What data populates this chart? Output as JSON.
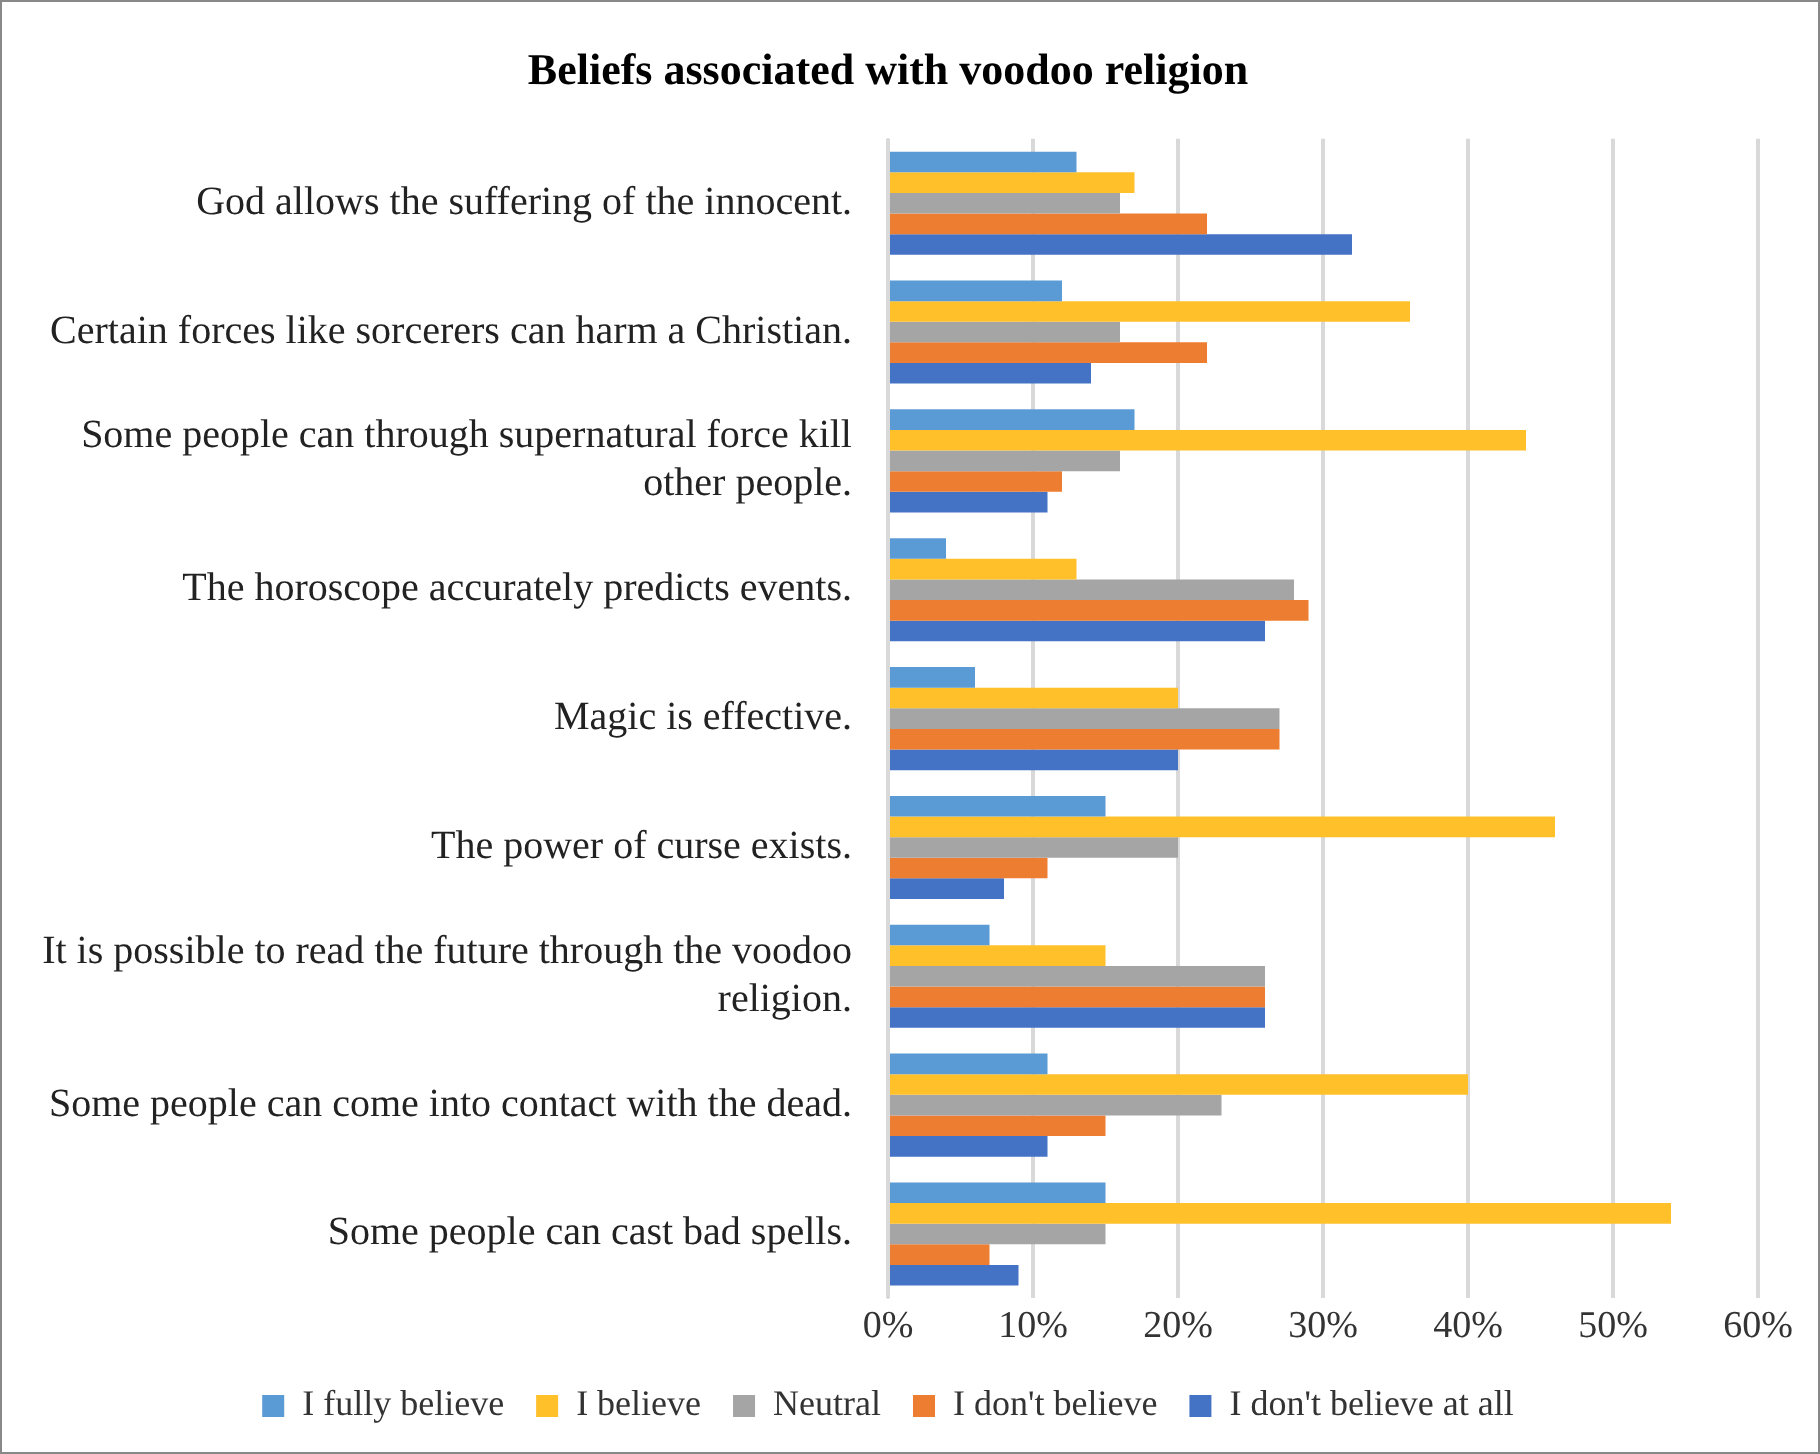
{
  "chart_data": {
    "type": "bar",
    "orientation": "horizontal",
    "title": "Beliefs associated with voodoo religion",
    "categories": [
      "God allows the suffering of the innocent.",
      "Certain forces like sorcerers can harm a Christian.",
      "Some people can through supernatural force kill other people.",
      "The horoscope accurately predicts events.",
      "Magic is effective.",
      "The power of curse exists.",
      "It is possible to read the future through the voodoo religion.",
      "Some people can come into contact with the dead.",
      "Some people can cast bad spells."
    ],
    "series": [
      {
        "name": "I fully believe",
        "color": "#5b9bd5",
        "values": [
          13,
          12,
          17,
          4,
          6,
          15,
          7,
          11,
          15
        ]
      },
      {
        "name": "I believe",
        "color": "#ffc02a",
        "values": [
          17,
          36,
          44,
          13,
          20,
          46,
          15,
          40,
          54
        ]
      },
      {
        "name": "Neutral",
        "color": "#a5a5a5",
        "values": [
          16,
          16,
          16,
          28,
          27,
          20,
          26,
          23,
          15
        ]
      },
      {
        "name": "I don't believe",
        "color": "#ed7d31",
        "values": [
          22,
          22,
          12,
          29,
          27,
          11,
          26,
          15,
          7
        ]
      },
      {
        "name": "I don't believe at all",
        "color": "#4472c4",
        "values": [
          32,
          14,
          11,
          26,
          20,
          8,
          26,
          11,
          9
        ]
      }
    ],
    "xlim": [
      0,
      60
    ],
    "xticks": [
      {
        "value": 0,
        "label": "0%"
      },
      {
        "value": 10,
        "label": "10%"
      },
      {
        "value": 20,
        "label": "20%"
      },
      {
        "value": 30,
        "label": "30%"
      },
      {
        "value": 40,
        "label": "40%"
      },
      {
        "value": 50,
        "label": "50%"
      },
      {
        "value": 60,
        "label": "60%"
      }
    ],
    "grid": "x",
    "legend": "bottom"
  }
}
